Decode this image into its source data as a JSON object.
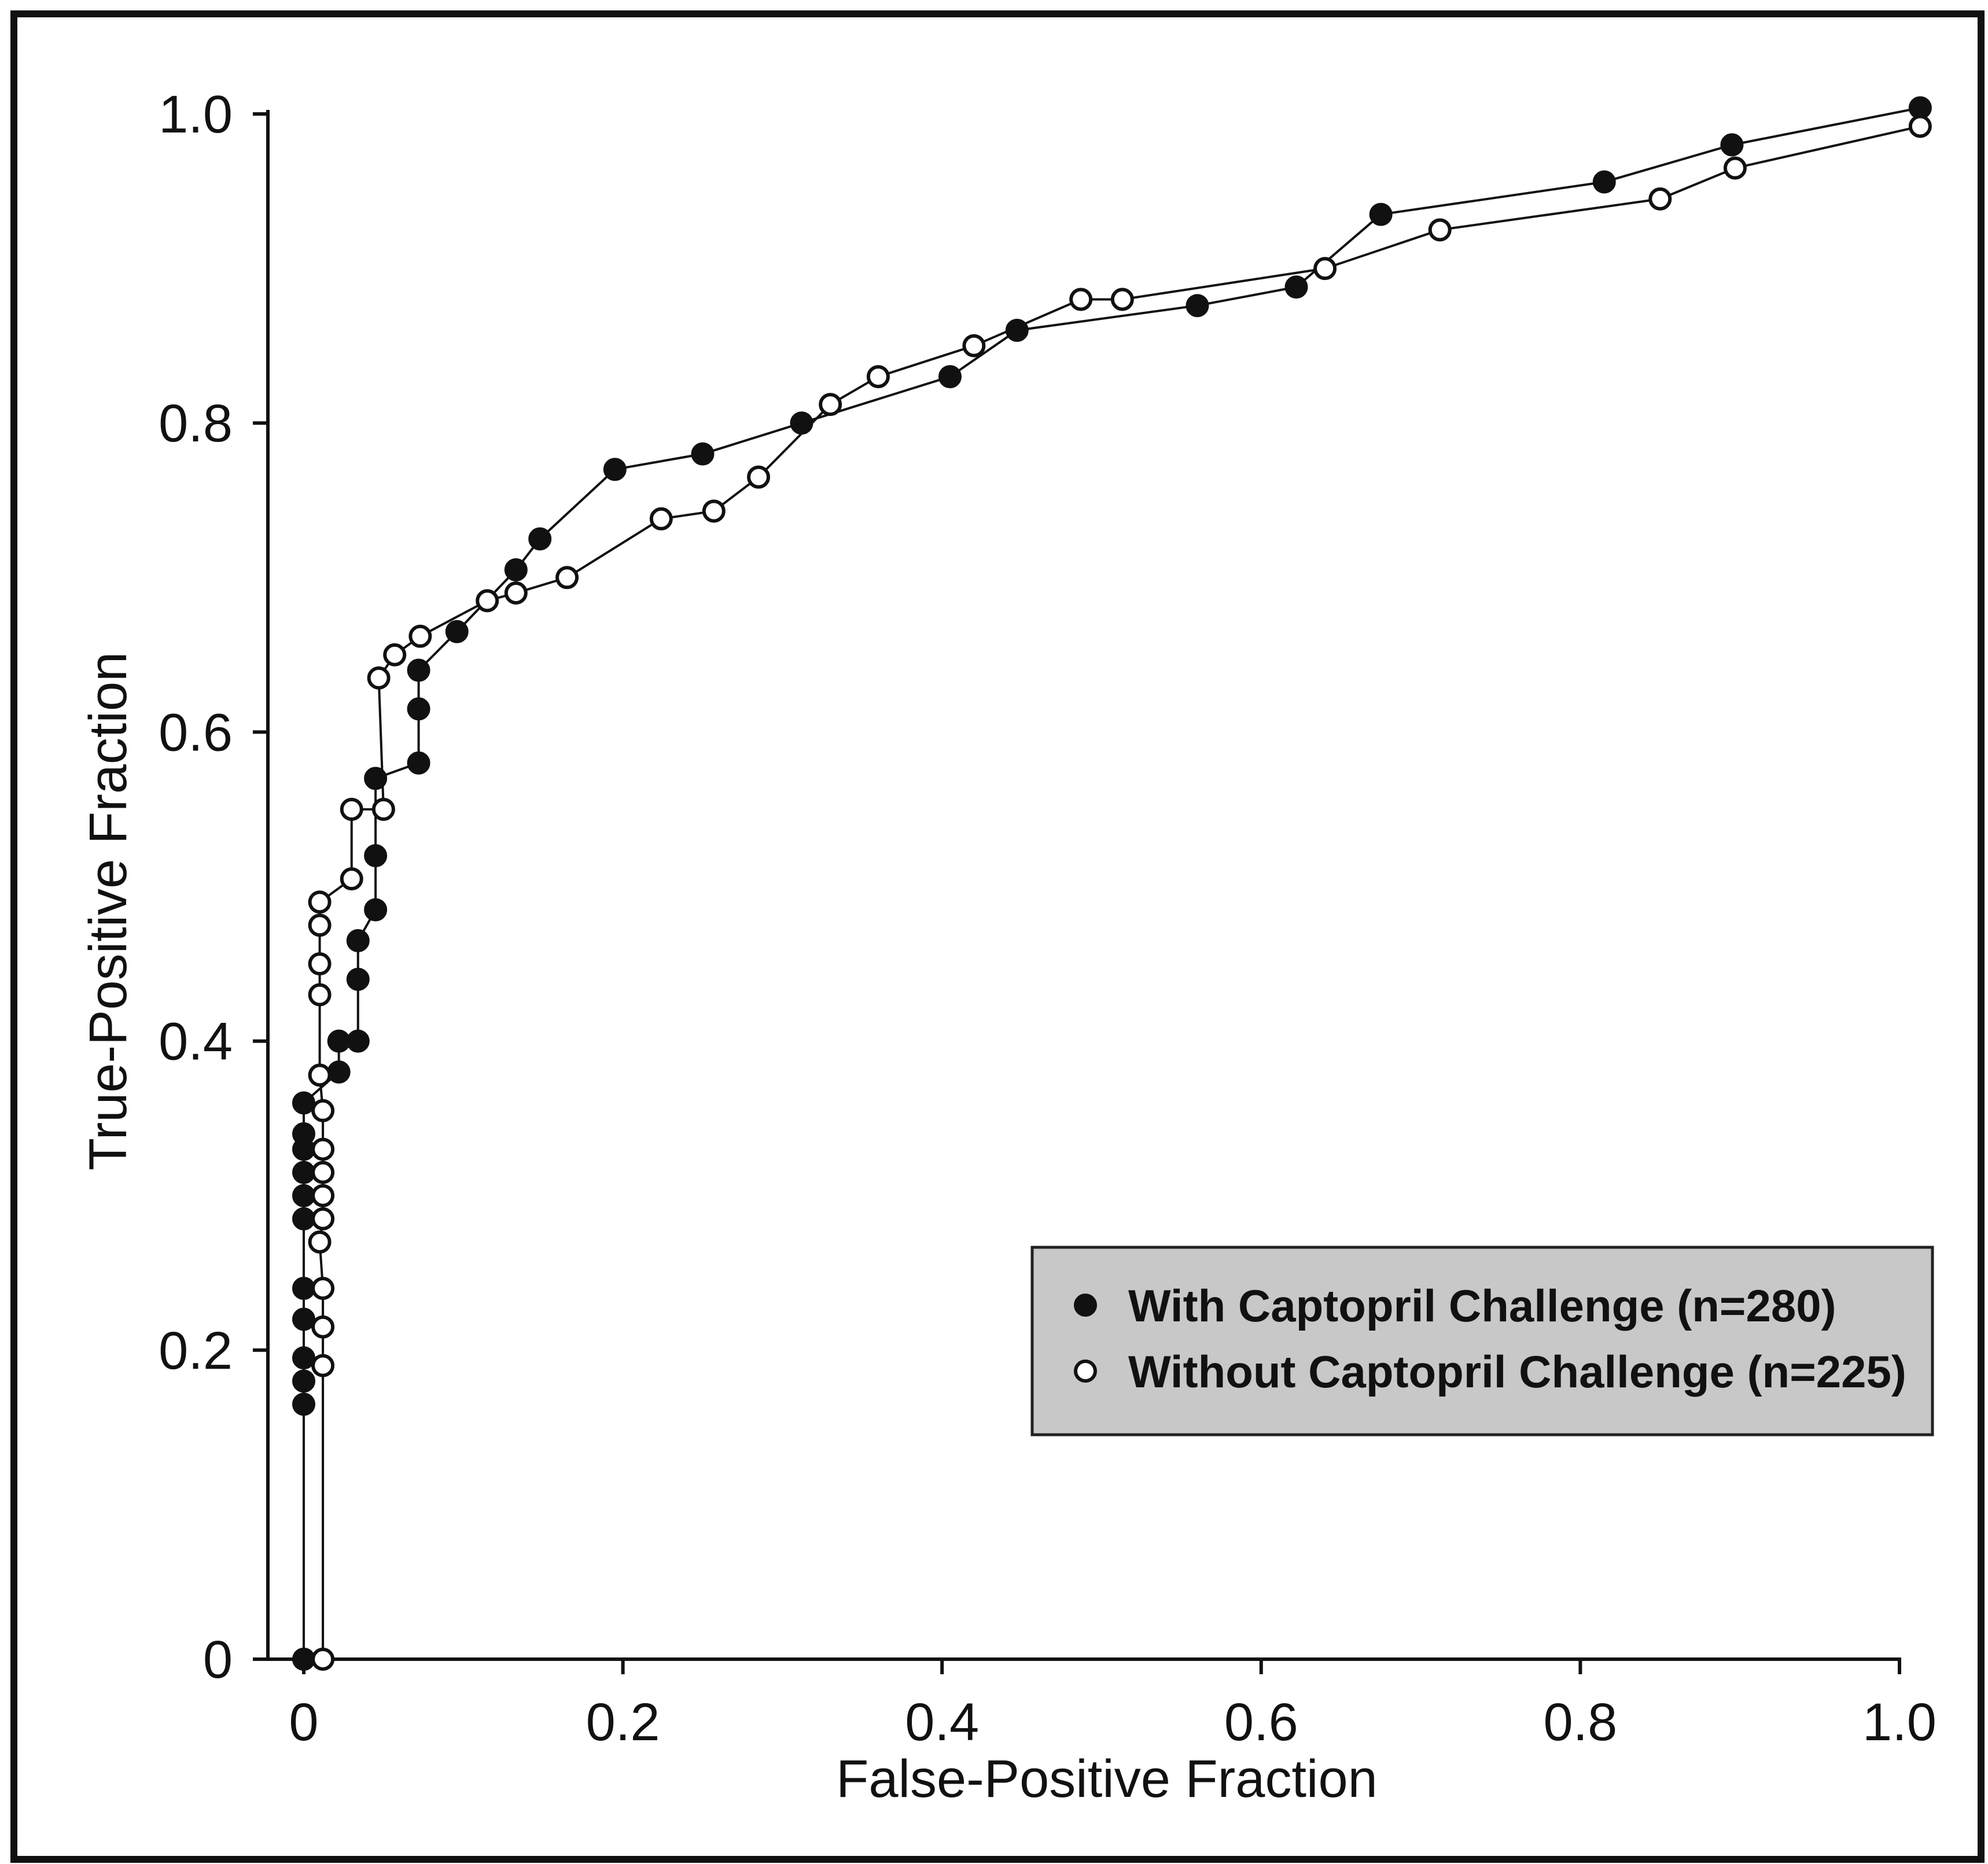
{
  "colors": {
    "frame": "#111111",
    "axis": "#111111",
    "filled_marker": "#111111",
    "open_marker_fill": "#ffffff",
    "legend_bg": "#c8c8c8",
    "legend_border": "#222222"
  },
  "chart_data": {
    "type": "line",
    "title": "",
    "xlabel": "False-Positive Fraction",
    "ylabel": "True-Positive Fraction",
    "xlim": [
      0,
      1.0
    ],
    "ylim": [
      0,
      1.0
    ],
    "x_ticks": [
      "0",
      "0.2",
      "0.4",
      "0.6",
      "0.8",
      "1.0"
    ],
    "y_ticks": [
      "0",
      "0.2",
      "0.4",
      "0.6",
      "0.8",
      "1.0"
    ],
    "grid": false,
    "legend_position": "bottom-right",
    "series": [
      {
        "name": "With Captopril Challenge (n=280)",
        "marker": "filled-circle",
        "points": [
          [
            0.0,
            0.0
          ],
          [
            0.0,
            0.165
          ],
          [
            0.0,
            0.18
          ],
          [
            0.0,
            0.195
          ],
          [
            0.0,
            0.22
          ],
          [
            0.0,
            0.24
          ],
          [
            0.0,
            0.285
          ],
          [
            0.0,
            0.3
          ],
          [
            0.0,
            0.315
          ],
          [
            0.0,
            0.33
          ],
          [
            0.0,
            0.34
          ],
          [
            0.0,
            0.36
          ],
          [
            0.022,
            0.38
          ],
          [
            0.022,
            0.4
          ],
          [
            0.034,
            0.4
          ],
          [
            0.034,
            0.44
          ],
          [
            0.034,
            0.465
          ],
          [
            0.045,
            0.485
          ],
          [
            0.045,
            0.52
          ],
          [
            0.045,
            0.57
          ],
          [
            0.072,
            0.58
          ],
          [
            0.072,
            0.615
          ],
          [
            0.072,
            0.64
          ],
          [
            0.096,
            0.665
          ],
          [
            0.133,
            0.705
          ],
          [
            0.148,
            0.725
          ],
          [
            0.195,
            0.77
          ],
          [
            0.25,
            0.78
          ],
          [
            0.312,
            0.8
          ],
          [
            0.405,
            0.83
          ],
          [
            0.447,
            0.86
          ],
          [
            0.56,
            0.876
          ],
          [
            0.622,
            0.888
          ],
          [
            0.675,
            0.935
          ],
          [
            0.815,
            0.956
          ],
          [
            0.895,
            0.98
          ],
          [
            1.013,
            1.004
          ]
        ]
      },
      {
        "name": "Without Captopril Challenge (n=225)",
        "marker": "open-circle",
        "points": [
          [
            0.012,
            0.0
          ],
          [
            0.012,
            0.19
          ],
          [
            0.012,
            0.215
          ],
          [
            0.012,
            0.24
          ],
          [
            0.01,
            0.27
          ],
          [
            0.012,
            0.285
          ],
          [
            0.012,
            0.3
          ],
          [
            0.012,
            0.315
          ],
          [
            0.012,
            0.33
          ],
          [
            0.012,
            0.355
          ],
          [
            0.01,
            0.378
          ],
          [
            0.01,
            0.43
          ],
          [
            0.01,
            0.45
          ],
          [
            0.01,
            0.475
          ],
          [
            0.01,
            0.49
          ],
          [
            0.03,
            0.505
          ],
          [
            0.03,
            0.55
          ],
          [
            0.05,
            0.55
          ],
          [
            0.047,
            0.635
          ],
          [
            0.057,
            0.65
          ],
          [
            0.073,
            0.662
          ],
          [
            0.115,
            0.685
          ],
          [
            0.133,
            0.69
          ],
          [
            0.165,
            0.7
          ],
          [
            0.224,
            0.738
          ],
          [
            0.257,
            0.743
          ],
          [
            0.285,
            0.765
          ],
          [
            0.33,
            0.812
          ],
          [
            0.36,
            0.83
          ],
          [
            0.42,
            0.85
          ],
          [
            0.487,
            0.88
          ],
          [
            0.513,
            0.88
          ],
          [
            0.64,
            0.9
          ],
          [
            0.712,
            0.925
          ],
          [
            0.85,
            0.945
          ],
          [
            0.897,
            0.965
          ],
          [
            1.013,
            0.992
          ]
        ]
      }
    ]
  }
}
